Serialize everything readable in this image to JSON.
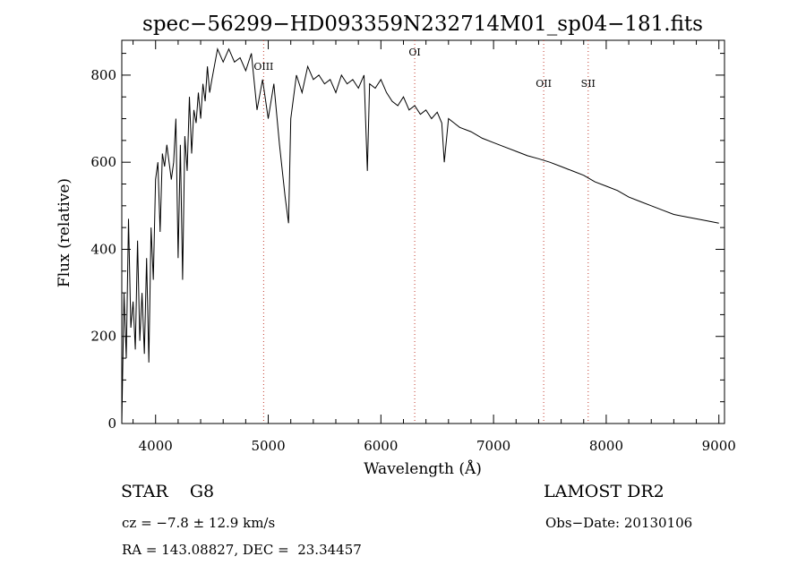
{
  "chart_data": {
    "type": "line",
    "title": "spec−56299−HD093359N232714M01_sp04−181.fits",
    "xlabel": "Wavelength (Å)",
    "ylabel": "Flux (relative)",
    "xlim": [
      3700,
      9050
    ],
    "ylim": [
      0,
      880
    ],
    "xticks": [
      4000,
      5000,
      6000,
      7000,
      8000,
      9000
    ],
    "yticks": [
      0,
      200,
      400,
      600,
      800
    ],
    "grid": false,
    "lines": [
      {
        "label": "OIII",
        "x": 4959
      },
      {
        "label": "OI",
        "x": 6300
      },
      {
        "label": "OII",
        "x": 7445
      },
      {
        "label": "SII",
        "x": 7840
      }
    ],
    "series": [
      {
        "x": [
          3700,
          3720,
          3740,
          3760,
          3780,
          3800,
          3820,
          3840,
          3860,
          3880,
          3900,
          3920,
          3940,
          3960,
          3980,
          4000,
          4020,
          4040,
          4060,
          4080,
          4100,
          4120,
          4140,
          4160,
          4180,
          4200,
          4220,
          4240,
          4260,
          4280,
          4300,
          4320,
          4340,
          4360,
          4380,
          4400,
          4420,
          4440,
          4460,
          4480,
          4500,
          4550,
          4600,
          4650,
          4700,
          4750,
          4800,
          4850,
          4900,
          4950,
          5000,
          5050,
          5100,
          5150,
          5180,
          5200,
          5250,
          5300,
          5350,
          5400,
          5450,
          5500,
          5550,
          5600,
          5650,
          5700,
          5750,
          5800,
          5850,
          5880,
          5900,
          5950,
          6000,
          6050,
          6100,
          6150,
          6200,
          6250,
          6300,
          6350,
          6400,
          6450,
          6500,
          6540,
          6563,
          6600,
          6650,
          6700,
          6800,
          6900,
          7000,
          7100,
          7200,
          7300,
          7400,
          7500,
          7600,
          7700,
          7800,
          7900,
          8000,
          8100,
          8200,
          8300,
          8400,
          8500,
          8600,
          8700,
          8800,
          8900,
          9000
        ],
        "values": [
          0,
          300,
          150,
          470,
          220,
          280,
          170,
          420,
          190,
          300,
          160,
          380,
          140,
          450,
          330,
          560,
          600,
          440,
          620,
          590,
          640,
          600,
          560,
          600,
          700,
          380,
          640,
          330,
          660,
          580,
          750,
          620,
          720,
          690,
          760,
          700,
          780,
          740,
          820,
          760,
          790,
          860,
          830,
          860,
          830,
          840,
          810,
          850,
          720,
          790,
          700,
          780,
          640,
          520,
          460,
          700,
          800,
          760,
          820,
          790,
          800,
          780,
          790,
          760,
          800,
          780,
          790,
          770,
          800,
          580,
          780,
          770,
          790,
          760,
          740,
          730,
          750,
          720,
          730,
          710,
          720,
          700,
          715,
          690,
          600,
          700,
          690,
          680,
          670,
          655,
          645,
          635,
          625,
          615,
          608,
          600,
          590,
          580,
          570,
          555,
          545,
          535,
          520,
          510,
          500,
          490,
          480,
          475,
          470,
          465,
          460
        ]
      }
    ]
  },
  "info": {
    "object_class": "STAR    G8",
    "survey": "LAMOST DR2",
    "cz": "cz = −7.8 ± 12.9 km/s",
    "obs_date": "Obs−Date: 20130106",
    "radec": "RA = 143.08827, DEC =  23.34457"
  }
}
